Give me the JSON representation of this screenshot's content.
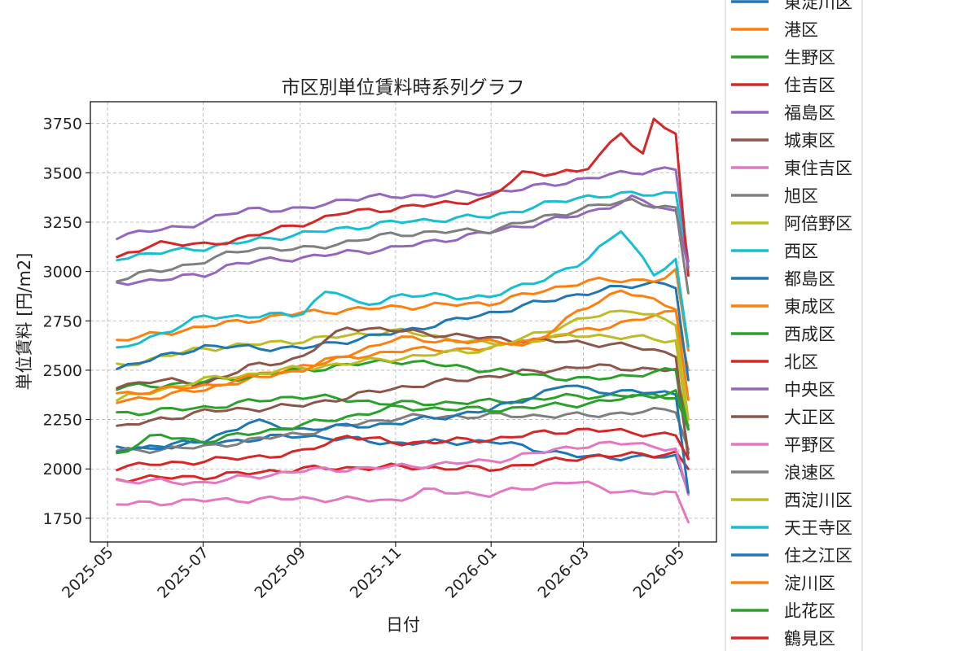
{
  "chart_data": {
    "type": "line",
    "title": "市区別単位賃料時系列グラフ",
    "xlabel": "日付",
    "ylabel": "単位賃料 [円/m2]",
    "x_ticks": [
      "2025-05",
      "2025-07",
      "2025-09",
      "2025-11",
      "2026-01",
      "2026-03",
      "2026-05"
    ],
    "y_ticks": [
      1750,
      2000,
      2250,
      2500,
      2750,
      3000,
      3250,
      3500,
      3750
    ],
    "xlim": [
      "2025-04-20",
      "2026-05-25"
    ],
    "ylim": [
      1630,
      3860
    ],
    "grid": true,
    "legend_position": "right, outside plot (partially cut off)",
    "series": [
      {
        "name": "東淀川区",
        "color": "#1f77b4",
        "keypoints": [
          [
            "2025-05-07",
            2100
          ],
          [
            "2025-07-01",
            2130
          ],
          [
            "2025-09-01",
            2170
          ],
          [
            "2025-11-01",
            2130
          ],
          [
            "2026-01-01",
            2140
          ],
          [
            "2026-03-01",
            2060
          ],
          [
            "2026-04-30",
            2060
          ],
          [
            "2026-05-07",
            1880
          ]
        ]
      },
      {
        "name": "港区",
        "color": "#ff7f0e",
        "keypoints": [
          [
            "2025-05-07",
            2340
          ],
          [
            "2025-07-01",
            2400
          ],
          [
            "2025-09-01",
            2520
          ],
          [
            "2025-11-01",
            2600
          ],
          [
            "2026-01-01",
            2610
          ],
          [
            "2026-03-01",
            2700
          ],
          [
            "2026-04-20",
            2780
          ],
          [
            "2026-04-30",
            2810
          ],
          [
            "2026-05-07",
            2500
          ]
        ]
      },
      {
        "name": "生野区",
        "color": "#2ca02c",
        "keypoints": [
          [
            "2025-05-07",
            2280
          ],
          [
            "2025-07-01",
            2310
          ],
          [
            "2025-09-01",
            2370
          ],
          [
            "2025-11-01",
            2330
          ],
          [
            "2026-01-01",
            2340
          ],
          [
            "2026-03-01",
            2370
          ],
          [
            "2026-04-30",
            2370
          ],
          [
            "2026-05-07",
            2220
          ]
        ]
      },
      {
        "name": "住吉区",
        "color": "#d62728",
        "keypoints": [
          [
            "2025-05-07",
            1950
          ],
          [
            "2025-07-01",
            1960
          ],
          [
            "2025-09-01",
            2000
          ],
          [
            "2025-11-01",
            2010
          ],
          [
            "2026-01-01",
            2000
          ],
          [
            "2026-03-01",
            2060
          ],
          [
            "2026-04-30",
            2080
          ],
          [
            "2026-05-07",
            2000
          ]
        ]
      },
      {
        "name": "福島区",
        "color": "#9467bd",
        "keypoints": [
          [
            "2025-05-07",
            3180
          ],
          [
            "2025-06-20",
            3230
          ],
          [
            "2025-08-01",
            3320
          ],
          [
            "2025-09-01",
            3310
          ],
          [
            "2025-10-01",
            3370
          ],
          [
            "2025-11-01",
            3380
          ],
          [
            "2026-01-01",
            3400
          ],
          [
            "2026-02-01",
            3430
          ],
          [
            "2026-03-01",
            3470
          ],
          [
            "2026-04-20",
            3520
          ],
          [
            "2026-04-30",
            3520
          ],
          [
            "2026-05-07",
            3050
          ]
        ]
      },
      {
        "name": "城東区",
        "color": "#8c564b",
        "keypoints": [
          [
            "2025-05-07",
            2210
          ],
          [
            "2025-07-01",
            2290
          ],
          [
            "2025-09-01",
            2320
          ],
          [
            "2025-11-01",
            2410
          ],
          [
            "2026-01-01",
            2470
          ],
          [
            "2026-03-01",
            2520
          ],
          [
            "2026-04-30",
            2500
          ],
          [
            "2026-05-07",
            2080
          ]
        ]
      },
      {
        "name": "東住吉区",
        "color": "#e377c2",
        "keypoints": [
          [
            "2025-05-07",
            1820
          ],
          [
            "2025-07-01",
            1840
          ],
          [
            "2025-09-01",
            1850
          ],
          [
            "2025-11-01",
            1840
          ],
          [
            "2025-11-20",
            1890
          ],
          [
            "2026-01-01",
            1870
          ],
          [
            "2026-02-20",
            1940
          ],
          [
            "2026-03-20",
            1890
          ],
          [
            "2026-04-30",
            1870
          ],
          [
            "2026-05-07",
            1730
          ]
        ]
      },
      {
        "name": "旭区",
        "color": "#7f7f7f",
        "keypoints": [
          [
            "2025-05-07",
            2090
          ],
          [
            "2025-07-01",
            2110
          ],
          [
            "2025-09-01",
            2180
          ],
          [
            "2025-11-01",
            2260
          ],
          [
            "2026-01-01",
            2270
          ],
          [
            "2026-03-01",
            2270
          ],
          [
            "2026-04-30",
            2300
          ],
          [
            "2026-05-07",
            2100
          ]
        ]
      },
      {
        "name": "阿倍野区",
        "color": "#bcbd22",
        "keypoints": [
          [
            "2025-05-07",
            2520
          ],
          [
            "2025-07-01",
            2610
          ],
          [
            "2025-09-01",
            2650
          ],
          [
            "2025-11-01",
            2700
          ],
          [
            "2026-01-01",
            2630
          ],
          [
            "2026-03-01",
            2680
          ],
          [
            "2026-04-30",
            2650
          ],
          [
            "2026-05-07",
            2200
          ]
        ]
      },
      {
        "name": "西区",
        "color": "#17becf",
        "keypoints": [
          [
            "2025-05-07",
            3070
          ],
          [
            "2025-07-01",
            3120
          ],
          [
            "2025-09-01",
            3190
          ],
          [
            "2025-11-01",
            3250
          ],
          [
            "2026-01-01",
            3280
          ],
          [
            "2026-03-01",
            3380
          ],
          [
            "2026-04-30",
            3400
          ],
          [
            "2026-05-07",
            3020
          ]
        ]
      },
      {
        "name": "都島区",
        "color": "#1f77b4",
        "keypoints": [
          [
            "2025-05-07",
            2510
          ],
          [
            "2025-07-01",
            2620
          ],
          [
            "2025-09-01",
            2610
          ],
          [
            "2025-11-01",
            2690
          ],
          [
            "2026-01-01",
            2790
          ],
          [
            "2026-03-01",
            2890
          ],
          [
            "2026-04-20",
            2950
          ],
          [
            "2026-04-30",
            2920
          ],
          [
            "2026-05-07",
            2450
          ]
        ]
      },
      {
        "name": "東成区",
        "color": "#ff7f0e",
        "keypoints": [
          [
            "2025-05-07",
            2650
          ],
          [
            "2025-07-01",
            2720
          ],
          [
            "2025-09-01",
            2790
          ],
          [
            "2025-11-01",
            2820
          ],
          [
            "2026-01-01",
            2840
          ],
          [
            "2026-03-01",
            2950
          ],
          [
            "2026-04-20",
            2960
          ],
          [
            "2026-04-30",
            3000
          ],
          [
            "2026-05-07",
            2600
          ]
        ]
      },
      {
        "name": "西成区",
        "color": "#2ca02c",
        "keypoints": [
          [
            "2025-05-07",
            2410
          ],
          [
            "2025-07-01",
            2440
          ],
          [
            "2025-09-01",
            2500
          ],
          [
            "2025-11-01",
            2550
          ],
          [
            "2026-01-01",
            2500
          ],
          [
            "2026-03-01",
            2450
          ],
          [
            "2026-04-30",
            2500
          ],
          [
            "2026-05-07",
            2200
          ]
        ]
      },
      {
        "name": "北区",
        "color": "#d62728",
        "keypoints": [
          [
            "2025-05-07",
            3060
          ],
          [
            "2025-06-01",
            3150
          ],
          [
            "2025-07-01",
            3130
          ],
          [
            "2025-08-01",
            3180
          ],
          [
            "2025-09-01",
            3240
          ],
          [
            "2025-10-01",
            3300
          ],
          [
            "2025-11-01",
            3320
          ],
          [
            "2026-01-01",
            3370
          ],
          [
            "2026-01-20",
            3500
          ],
          [
            "2026-03-01",
            3500
          ],
          [
            "2026-03-25",
            3710
          ],
          [
            "2026-04-10",
            3570
          ],
          [
            "2026-04-15",
            3760
          ],
          [
            "2026-04-30",
            3700
          ],
          [
            "2026-05-07",
            2980
          ]
        ]
      },
      {
        "name": "中央区",
        "color": "#9467bd",
        "keypoints": [
          [
            "2025-05-07",
            2940
          ],
          [
            "2025-07-01",
            2980
          ],
          [
            "2025-07-20",
            3040
          ],
          [
            "2025-09-01",
            3070
          ],
          [
            "2025-11-01",
            3120
          ],
          [
            "2026-01-01",
            3200
          ],
          [
            "2026-03-01",
            3290
          ],
          [
            "2026-04-01",
            3370
          ],
          [
            "2026-04-30",
            3300
          ],
          [
            "2026-05-07",
            3020
          ]
        ]
      },
      {
        "name": "大正区",
        "color": "#8c564b",
        "keypoints": [
          [
            "2025-05-07",
            2420
          ],
          [
            "2025-06-01",
            2450
          ],
          [
            "2025-07-01",
            2430
          ],
          [
            "2025-08-01",
            2520
          ],
          [
            "2025-09-01",
            2560
          ],
          [
            "2025-10-01",
            2720
          ],
          [
            "2025-11-01",
            2700
          ],
          [
            "2026-01-01",
            2660
          ],
          [
            "2026-03-01",
            2640
          ],
          [
            "2026-04-01",
            2620
          ],
          [
            "2026-04-30",
            2580
          ],
          [
            "2026-05-07",
            2050
          ]
        ]
      },
      {
        "name": "平野区",
        "color": "#e377c2",
        "keypoints": [
          [
            "2025-05-07",
            1940
          ],
          [
            "2025-07-01",
            1930
          ],
          [
            "2025-09-01",
            1990
          ],
          [
            "2025-11-01",
            2010
          ],
          [
            "2026-01-01",
            2040
          ],
          [
            "2026-03-01",
            2120
          ],
          [
            "2026-04-01",
            2130
          ],
          [
            "2026-04-30",
            2100
          ],
          [
            "2026-05-07",
            1870
          ]
        ]
      },
      {
        "name": "浪速区",
        "color": "#7f7f7f",
        "keypoints": [
          [
            "2025-05-07",
            2960
          ],
          [
            "2025-07-01",
            3050
          ],
          [
            "2025-08-01",
            3120
          ],
          [
            "2025-09-01",
            3110
          ],
          [
            "2025-11-01",
            3190
          ],
          [
            "2026-01-01",
            3210
          ],
          [
            "2026-03-01",
            3320
          ],
          [
            "2026-04-01",
            3360
          ],
          [
            "2026-04-30",
            3310
          ],
          [
            "2026-05-07",
            2890
          ]
        ]
      },
      {
        "name": "西淀川区",
        "color": "#bcbd22",
        "keypoints": [
          [
            "2025-05-07",
            2350
          ],
          [
            "2025-07-01",
            2450
          ],
          [
            "2025-09-01",
            2510
          ],
          [
            "2025-11-01",
            2560
          ],
          [
            "2026-01-01",
            2610
          ],
          [
            "2026-03-01",
            2760
          ],
          [
            "2026-04-01",
            2810
          ],
          [
            "2026-04-30",
            2730
          ],
          [
            "2026-05-07",
            2250
          ]
        ]
      },
      {
        "name": "天王寺区",
        "color": "#17becf",
        "keypoints": [
          [
            "2025-05-07",
            2600
          ],
          [
            "2025-07-01",
            2770
          ],
          [
            "2025-09-01",
            2780
          ],
          [
            "2025-09-20",
            2920
          ],
          [
            "2025-10-10",
            2820
          ],
          [
            "2025-11-01",
            2880
          ],
          [
            "2026-01-01",
            2870
          ],
          [
            "2026-03-01",
            3040
          ],
          [
            "2026-03-25",
            3220
          ],
          [
            "2026-04-15",
            2980
          ],
          [
            "2026-04-30",
            3060
          ],
          [
            "2026-05-07",
            2620
          ]
        ]
      },
      {
        "name": "住之江区",
        "color": "#1f77b4",
        "keypoints": [
          [
            "2025-05-07",
            2090
          ],
          [
            "2025-07-01",
            2140
          ],
          [
            "2025-08-01",
            2240
          ],
          [
            "2025-09-01",
            2200
          ],
          [
            "2025-11-01",
            2230
          ],
          [
            "2026-01-01",
            2300
          ],
          [
            "2026-02-20",
            2430
          ],
          [
            "2026-03-01",
            2400
          ],
          [
            "2026-04-30",
            2380
          ],
          [
            "2026-05-07",
            1880
          ]
        ]
      },
      {
        "name": "淀川区",
        "color": "#ff7f0e",
        "keypoints": [
          [
            "2025-05-07",
            2380
          ],
          [
            "2025-07-01",
            2420
          ],
          [
            "2025-09-01",
            2500
          ],
          [
            "2025-11-01",
            2660
          ],
          [
            "2026-01-01",
            2640
          ],
          [
            "2026-02-01",
            2650
          ],
          [
            "2026-03-01",
            2820
          ],
          [
            "2026-03-25",
            2900
          ],
          [
            "2026-04-30",
            2820
          ],
          [
            "2026-05-07",
            2350
          ]
        ]
      },
      {
        "name": "此花区",
        "color": "#2ca02c",
        "keypoints": [
          [
            "2025-05-07",
            2080
          ],
          [
            "2025-06-01",
            2170
          ],
          [
            "2025-07-01",
            2140
          ],
          [
            "2025-09-01",
            2220
          ],
          [
            "2025-11-01",
            2310
          ],
          [
            "2026-01-01",
            2300
          ],
          [
            "2026-03-01",
            2330
          ],
          [
            "2026-04-30",
            2390
          ],
          [
            "2026-05-07",
            2200
          ]
        ]
      },
      {
        "name": "鶴見区",
        "color": "#d62728",
        "keypoints": [
          [
            "2025-05-07",
            2010
          ],
          [
            "2025-07-01",
            2040
          ],
          [
            "2025-09-01",
            2080
          ],
          [
            "2025-10-01",
            2170
          ],
          [
            "2025-11-01",
            2130
          ],
          [
            "2026-01-01",
            2150
          ],
          [
            "2026-02-01",
            2180
          ],
          [
            "2026-03-01",
            2200
          ],
          [
            "2026-04-30",
            2170
          ],
          [
            "2026-05-07",
            2050
          ]
        ]
      }
    ]
  }
}
